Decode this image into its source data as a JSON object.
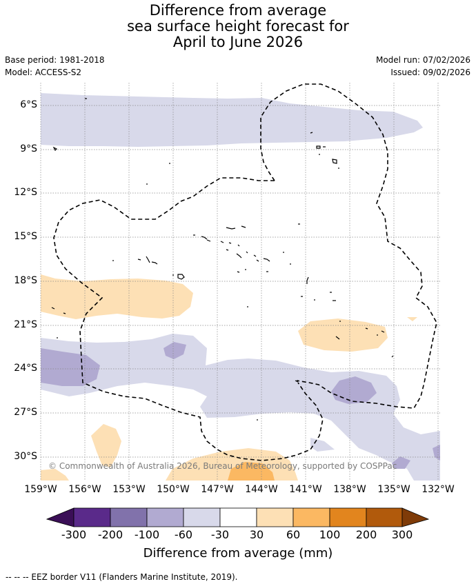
{
  "title": {
    "line1": "Difference from average",
    "line2": "sea surface height forecast for",
    "line3": "April to June 2026"
  },
  "meta": {
    "base_period": "Base period: 1981-2018",
    "model": "Model: ACCESS-S2",
    "model_run": "Model run: 07/02/2026",
    "issued": "Issued: 09/02/2026"
  },
  "map": {
    "latitude_labels": [
      "6°S",
      "9°S",
      "12°S",
      "15°S",
      "18°S",
      "21°S",
      "24°S",
      "27°S",
      "30°S"
    ],
    "longitude_labels": [
      "159°W",
      "156°W",
      "153°W",
      "150°W",
      "147°W",
      "144°W",
      "141°W",
      "138°W",
      "135°W",
      "132°W"
    ],
    "copyright": "© Commonwealth of Australia 2026, Bureau of Meteorology, supported by COSPPac"
  },
  "colorbar": {
    "title": "Difference from average (mm)",
    "ticks": [
      "-300",
      "-200",
      "-100",
      "-60",
      "-30",
      "30",
      "60",
      "100",
      "200",
      "300"
    ],
    "colors": {
      "below": "#3b0f57",
      "b1": "#5a2a8a",
      "b2": "#8172ab",
      "b3": "#b1aad1",
      "b4": "#d8d9ea",
      "b5": "#ffffff",
      "b6": "#fde0b5",
      "b7": "#fbb862",
      "b8": "#e2851e",
      "b9": "#b15a0c",
      "above": "#7f3b08"
    }
  },
  "footnote": "-- -- -- EEZ border V11 (Flanders Marine Institute, 2019)."
}
